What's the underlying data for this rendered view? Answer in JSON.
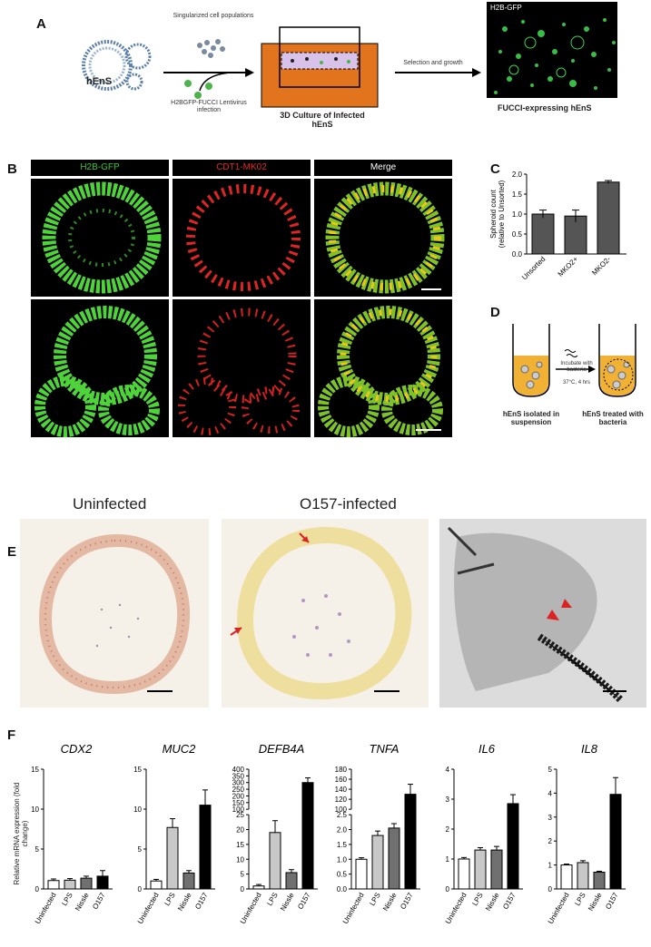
{
  "panelA": {
    "label": "A",
    "hens": "hEnS",
    "singularized": "Singularized cell populations",
    "infection": "H2BGFP-FUCCI Lentivirus infection",
    "culture": "3D Culture of Infected hEnS",
    "selection": "Selection and growth",
    "image_tag": "H2B-GFP",
    "result": "FUCCI-expressing hEnS"
  },
  "panelB": {
    "label": "B",
    "headers": [
      "H2B-GFP",
      "CDT1-MK02",
      "Merge"
    ],
    "header_colors": [
      "#3cc43c",
      "#e32a2a",
      "#ffffff"
    ]
  },
  "panelC": {
    "label": "C",
    "chart_data": {
      "type": "bar",
      "categories": [
        "Unsorted",
        "MKO2+",
        "MKO2-"
      ],
      "values": [
        1.0,
        0.95,
        1.8
      ],
      "errors": [
        0.1,
        0.15,
        0.04
      ],
      "ylabel": "Spheroid count (relative to Unsorted)",
      "ylim": [
        0,
        2.0
      ],
      "yticks": [
        "0.0",
        "0.5",
        "1.0",
        "1.5",
        "2.0"
      ],
      "bar_color": "#555555"
    }
  },
  "panelD": {
    "label": "D",
    "incubate": "Incubate with bacteria",
    "conditions": "37°C, 4 hrs",
    "left": "hEnS isolated in suspension",
    "right": "hEnS treated with bacteria"
  },
  "panelE": {
    "label": "E",
    "uninfected": "Uninfected",
    "infected": "O157-infected"
  },
  "panelF": {
    "label": "F",
    "ylabel": "Relative mRNA expression (fold change)",
    "categories": [
      "Uninfected",
      "LPS",
      "Nissle",
      "O157"
    ],
    "bar_colors": [
      "#ffffff",
      "#c8c8c8",
      "#707070",
      "#000000"
    ],
    "chart_data": [
      {
        "type": "bar",
        "title": "CDX2",
        "values": [
          1.05,
          1.1,
          1.35,
          1.6
        ],
        "errors": [
          0.2,
          0.2,
          0.25,
          0.7
        ],
        "ylim": [
          0,
          15
        ],
        "yticks": [
          0,
          5,
          10,
          15
        ]
      },
      {
        "type": "bar",
        "title": "MUC2",
        "values": [
          1.0,
          7.7,
          2.0,
          10.5
        ],
        "errors": [
          0.2,
          1.1,
          0.3,
          1.9
        ],
        "ylim": [
          0,
          15
        ],
        "yticks": [
          0,
          5,
          10,
          15
        ]
      },
      {
        "type": "bar",
        "title": "DEFB4A",
        "values": [
          1.0,
          19.0,
          5.5,
          300
        ],
        "errors": [
          0.5,
          4.0,
          1.0,
          35
        ],
        "broken": true,
        "yticks": [
          0,
          5,
          10,
          15,
          20,
          25,
          100,
          150,
          200,
          250,
          300,
          350,
          400
        ]
      },
      {
        "type": "bar",
        "title": "TNFA",
        "values": [
          1.0,
          1.8,
          2.05,
          130
        ],
        "errors": [
          0.05,
          0.15,
          0.15,
          20
        ],
        "broken": true,
        "yticks": [
          0.0,
          0.5,
          1.0,
          1.5,
          2.0,
          2.5,
          100,
          120,
          140,
          160,
          180
        ]
      },
      {
        "type": "bar",
        "title": "IL6",
        "values": [
          1.0,
          1.3,
          1.3,
          2.85
        ],
        "errors": [
          0.05,
          0.08,
          0.12,
          0.3
        ],
        "ylim": [
          0,
          4
        ],
        "yticks": [
          0,
          1,
          2,
          3,
          4
        ]
      },
      {
        "type": "bar",
        "title": "IL8",
        "values": [
          1.0,
          1.1,
          0.7,
          3.95
        ],
        "errors": [
          0.04,
          0.08,
          0.04,
          0.7
        ],
        "ylim": [
          0,
          5
        ],
        "yticks": [
          0,
          1,
          2,
          3,
          4,
          5
        ]
      }
    ]
  }
}
